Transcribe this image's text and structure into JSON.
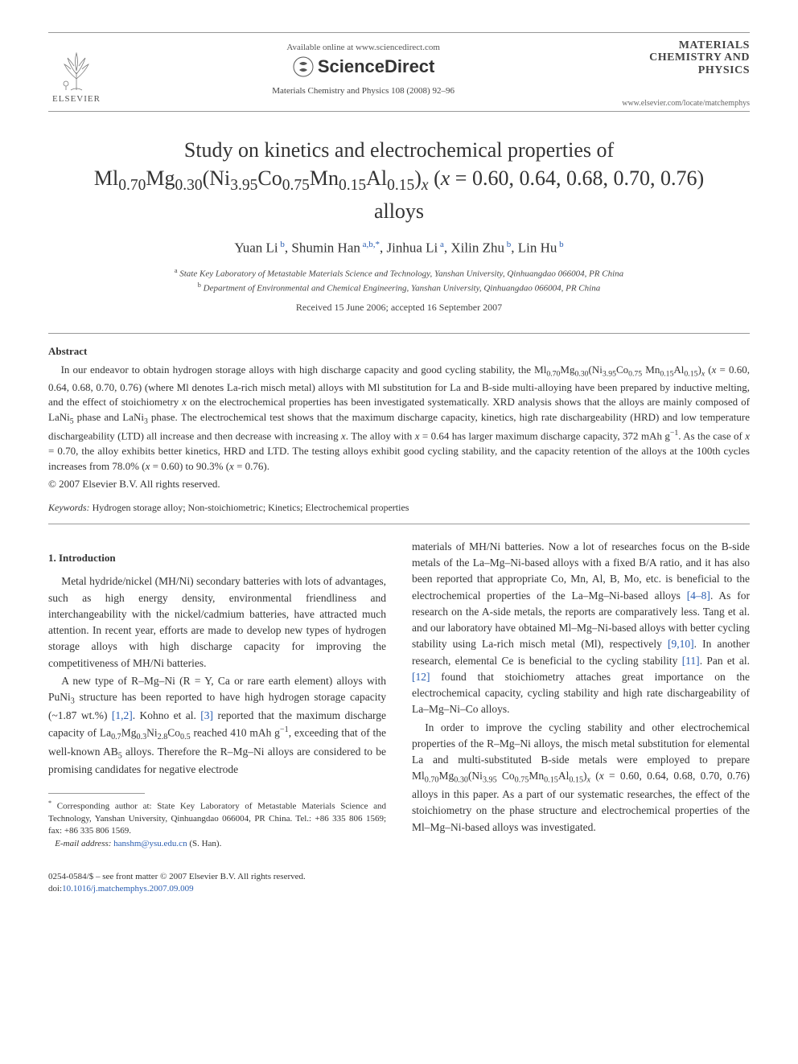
{
  "header": {
    "available_text": "Available online at www.sciencedirect.com",
    "sciencedirect": "ScienceDirect",
    "journal_ref": "Materials Chemistry and Physics 108 (2008) 92–96",
    "elsevier": "ELSEVIER",
    "journal_title_line1": "MATERIALS",
    "journal_title_line2": "CHEMISTRY AND",
    "journal_title_line3": "PHYSICS",
    "journal_url": "www.elsevier.com/locate/matchemphys"
  },
  "article_title_html": "Study on kinetics and electrochemical properties of Ml<sub>0.70</sub>Mg<sub>0.30</sub>(Ni<sub>3.95</sub>Co<sub>0.75</sub>Mn<sub>0.15</sub>Al<sub>0.15</sub>)<sub><i>x</i></sub> (<i>x</i> = 0.60, 0.64, 0.68, 0.70, 0.76) alloys",
  "authors_html": "Yuan Li<sup class=\"sup-link\"> b</sup>, Shumin Han<sup class=\"sup-link\"> a,b,</sup><sup class=\"sup-link\">*</sup>, Jinhua Li<sup class=\"sup-link\"> a</sup>, Xilin Zhu<sup class=\"sup-link\"> b</sup>, Lin Hu<sup class=\"sup-link\"> b</sup>",
  "affiliations": {
    "a": "State Key Laboratory of Metastable Materials Science and Technology, Yanshan University, Qinhuangdao 066004, PR China",
    "b": "Department of Environmental and Chemical Engineering, Yanshan University, Qinhuangdao 066004, PR China"
  },
  "dates": "Received 15 June 2006; accepted 16 September 2007",
  "abstract_heading": "Abstract",
  "abstract_html": "In our endeavor to obtain hydrogen storage alloys with high discharge capacity and good cycling stability, the Ml<sub>0.70</sub>Mg<sub>0.30</sub>(Ni<sub>3.95</sub>Co<sub>0.75</sub> Mn<sub>0.15</sub>Al<sub>0.15</sub>)<sub><i>x</i></sub> (<i>x</i> = 0.60, 0.64, 0.68, 0.70, 0.76) (where Ml denotes La-rich misch metal) alloys with Ml substitution for La and B-side multi-alloying have been prepared by inductive melting, and the effect of stoichiometry <i>x</i> on the electrochemical properties has been investigated systematically. XRD analysis shows that the alloys are mainly composed of LaNi<sub>5</sub> phase and LaNi<sub>3</sub> phase. The electrochemical test shows that the maximum discharge capacity, kinetics, high rate dischargeability (HRD) and low temperature dischargeability (LTD) all increase and then decrease with increasing <i>x</i>. The alloy with <i>x</i> = 0.64 has larger maximum discharge capacity, 372 mAh g<sup>−1</sup>. As the case of <i>x</i> = 0.70, the alloy exhibits better kinetics, HRD and LTD. The testing alloys exhibit good cycling stability, and the capacity retention of the alloys at the 100th cycles increases from 78.0% (<i>x</i> = 0.60) to 90.3% (<i>x</i> = 0.76).",
  "copyright": "© 2007 Elsevier B.V. All rights reserved.",
  "keywords_label": "Keywords:",
  "keywords_text": "Hydrogen storage alloy; Non-stoichiometric; Kinetics; Electrochemical properties",
  "intro_heading": "1.  Introduction",
  "body": {
    "p1": "Metal hydride/nickel (MH/Ni) secondary batteries with lots of advantages, such as high energy density, environmental friendliness and interchangeability with the nickel/cadmium batteries, have attracted much attention. In recent year, efforts are made to develop new types of hydrogen storage alloys with high discharge capacity for improving the competitiveness of MH/Ni batteries.",
    "p2_html": "A new type of R–Mg–Ni (R = Y, Ca or rare earth element) alloys with PuNi<sub>3</sub> structure has been reported to have high hydrogen storage capacity (~1.87 wt.%) <span class=\"ref-link\">[1,2]</span>. Kohno et al. <span class=\"ref-link\">[3]</span> reported that the maximum discharge capacity of La<sub>0.7</sub>Mg<sub>0.3</sub>Ni<sub>2.8</sub>Co<sub>0.5</sub> reached 410 mAh g<sup>−1</sup>, exceeding that of the well-known AB<sub>5</sub> alloys. Therefore the R–Mg–Ni alloys are considered to be promising candidates for negative electrode",
    "p3_html": "materials of MH/Ni batteries. Now a lot of researches focus on the B-side metals of the La–Mg–Ni-based alloys with a fixed B/A ratio, and it has also been reported that appropriate Co, Mn, Al, B, Mo, etc. is beneficial to the electrochemical properties of the La–Mg–Ni-based alloys <span class=\"ref-link\">[4–8]</span>. As for research on the A-side metals, the reports are comparatively less. Tang et al. and our laboratory have obtained Ml–Mg–Ni-based alloys with better cycling stability using La-rich misch metal (Ml), respectively <span class=\"ref-link\">[9,10]</span>. In another research, elemental Ce is beneficial to the cycling stability <span class=\"ref-link\">[11]</span>. Pan et al. <span class=\"ref-link\">[12]</span> found that stoichiometry attaches great importance on the electrochemical capacity, cycling stability and high rate dischargeability of La–Mg–Ni–Co alloys.",
    "p4_html": "In order to improve the cycling stability and other electrochemical properties of the R–Mg–Ni alloys, the misch metal substitution for elemental La and multi-substituted B-side metals were employed to prepare Ml<sub>0.70</sub>Mg<sub>0.30</sub>(Ni<sub>3.95</sub> Co<sub>0.75</sub>Mn<sub>0.15</sub>Al<sub>0.15</sub>)<sub><i>x</i></sub> (<i>x</i> = 0.60, 0.64, 0.68, 0.70, 0.76) alloys in this paper. As a part of our systematic researches, the effect of the stoichiometry on the phase structure and electrochemical properties of the Ml–Mg–Ni-based alloys was investigated."
  },
  "footnote": {
    "corr": "Corresponding author at: State Key Laboratory of Metastable Materials Science and Technology, Yanshan University, Qinhuangdao 066004, PR China. Tel.: +86 335 806 1569; fax: +86 335 806 1569.",
    "email_label": "E-mail address:",
    "email": "hanshm@ysu.edu.cn",
    "email_paren": "(S. Han)."
  },
  "footer": {
    "line1": "0254-0584/$ – see front matter © 2007 Elsevier B.V. All rights reserved.",
    "doi_prefix": "doi:",
    "doi": "10.1016/j.matchemphys.2007.09.009"
  },
  "colors": {
    "text": "#333333",
    "link": "#2a5db0",
    "rule": "#999999",
    "bg": "#ffffff"
  }
}
